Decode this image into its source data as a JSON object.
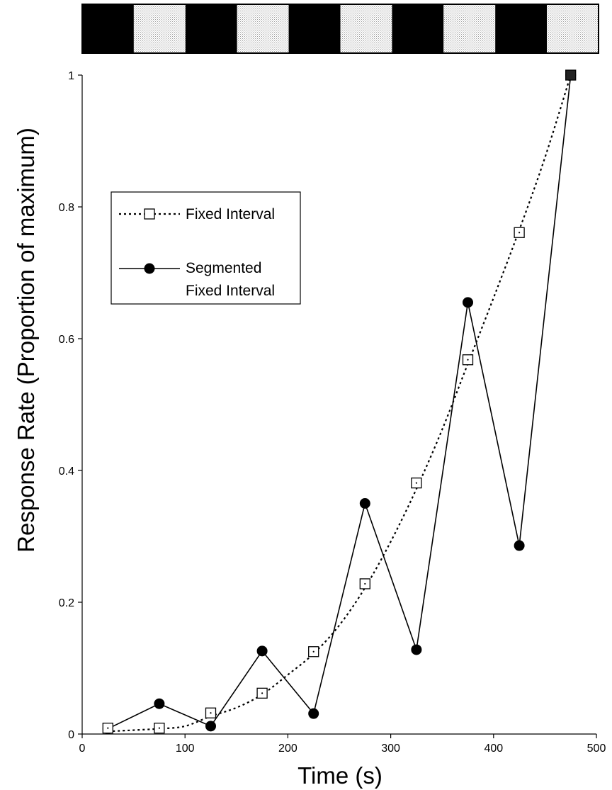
{
  "chart_data": {
    "type": "line",
    "xlabel": "Time (s)",
    "ylabel": "Response Rate (Proportion of maximum)",
    "xlim": [
      0,
      500
    ],
    "ylim": [
      0,
      1
    ],
    "x_ticks": [
      0,
      100,
      200,
      300,
      400,
      500
    ],
    "y_ticks": [
      0,
      0.2,
      0.4,
      0.6,
      0.8,
      1
    ],
    "grid": false,
    "legend_position": "upper-left",
    "stimulus_bar": {
      "segments": [
        "black",
        "dotted",
        "black",
        "dotted",
        "black",
        "dotted",
        "black",
        "dotted",
        "black",
        "dotted"
      ],
      "colors": {
        "black": "#000000",
        "dotted": "#e8e8e8"
      }
    },
    "series": [
      {
        "name": "Fixed Interval",
        "marker": "open-square",
        "line_style": "dotted",
        "color": "#000000",
        "x": [
          25,
          75,
          125,
          175,
          225,
          275,
          325,
          375,
          425,
          475
        ],
        "y": [
          0.009,
          0.009,
          0.032,
          0.062,
          0.125,
          0.228,
          0.381,
          0.568,
          0.761,
          1.0
        ],
        "fit_curve": [
          [
            25,
            0.004
          ],
          [
            75,
            0.008
          ],
          [
            100,
            0.012
          ],
          [
            125,
            0.027
          ],
          [
            150,
            0.04
          ],
          [
            175,
            0.06
          ],
          [
            200,
            0.09
          ],
          [
            225,
            0.122
          ],
          [
            250,
            0.165
          ],
          [
            275,
            0.222
          ],
          [
            300,
            0.292
          ],
          [
            325,
            0.372
          ],
          [
            350,
            0.462
          ],
          [
            375,
            0.562
          ],
          [
            400,
            0.662
          ],
          [
            425,
            0.765
          ],
          [
            450,
            0.875
          ],
          [
            475,
            1.0
          ]
        ]
      },
      {
        "name": "Segmented\nFixed Interval",
        "legend_lines": [
          "Segmented",
          "Fixed Interval"
        ],
        "marker": "filled-circle",
        "line_style": "solid",
        "color": "#000000",
        "x": [
          25,
          75,
          125,
          175,
          225,
          275,
          325,
          375,
          425,
          475
        ],
        "y": [
          0.008,
          0.046,
          0.012,
          0.126,
          0.031,
          0.35,
          0.128,
          0.655,
          0.286,
          1.0
        ]
      }
    ]
  }
}
